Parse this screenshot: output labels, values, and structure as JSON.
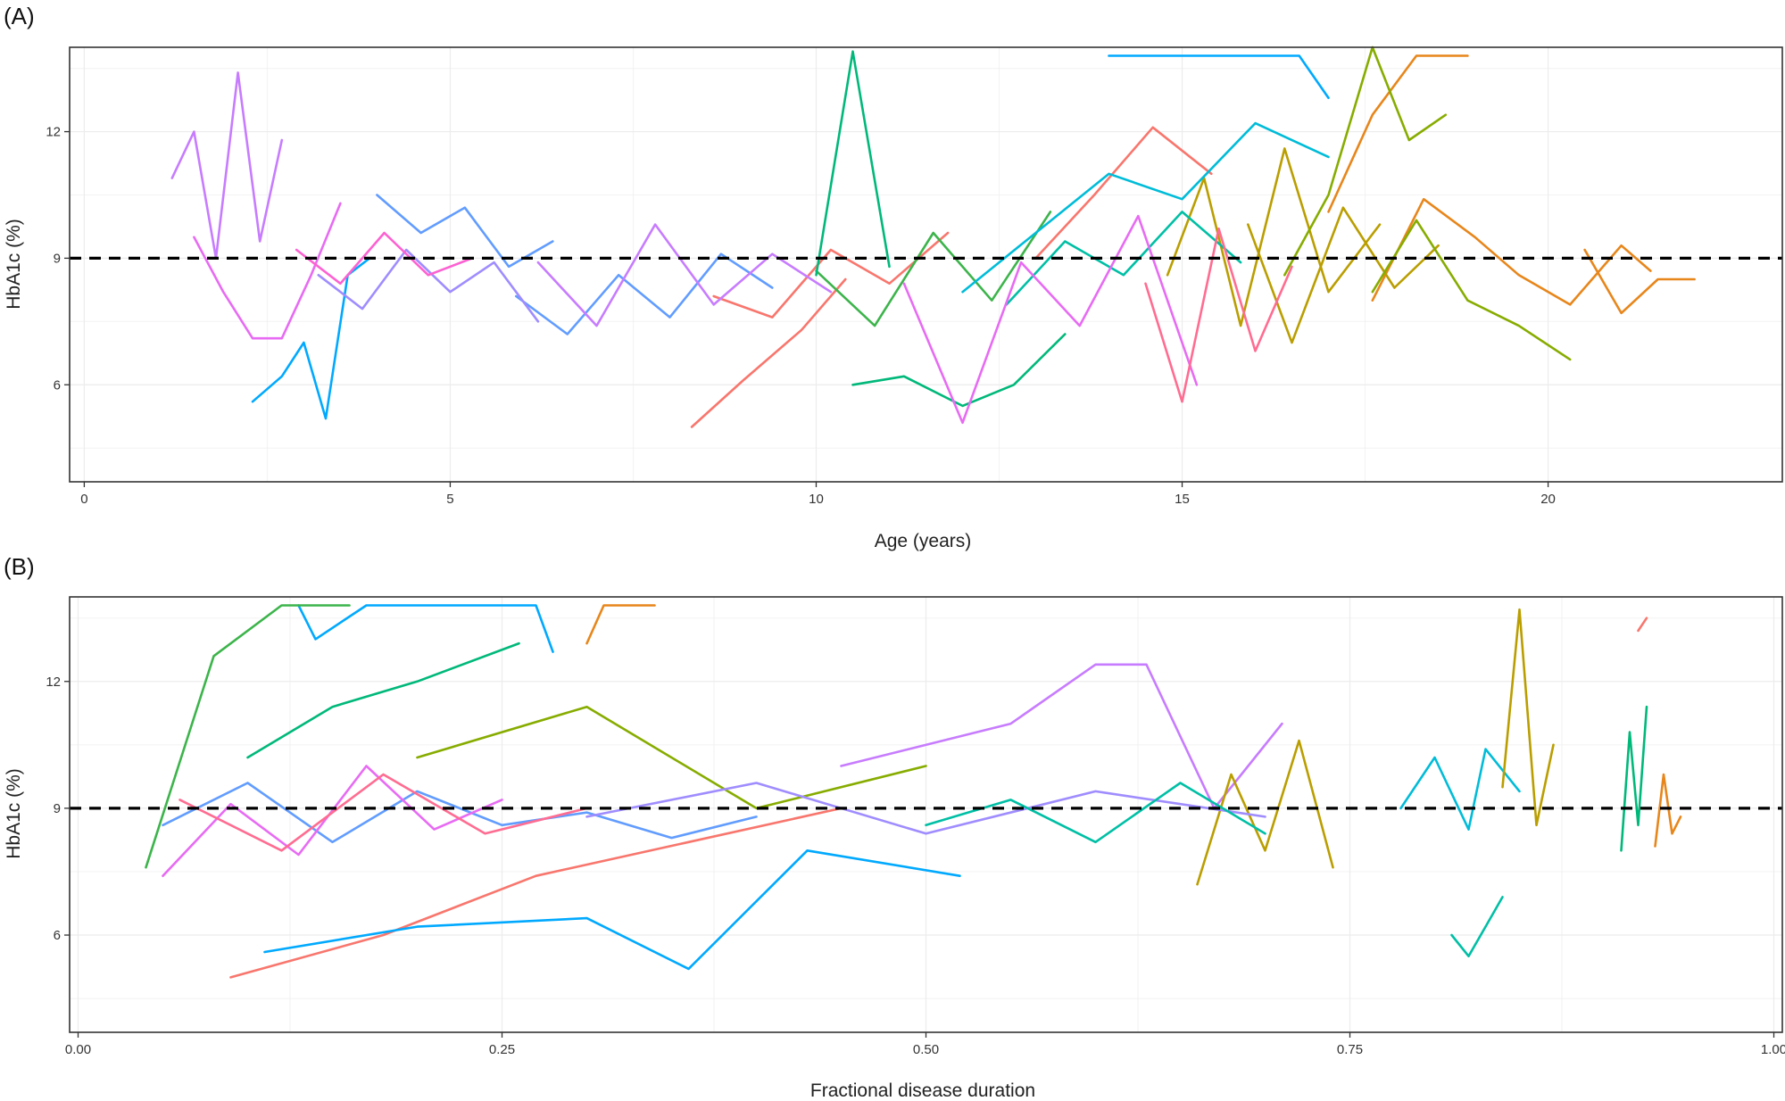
{
  "chart_data": [
    {
      "panel_label": "(A)",
      "type": "line",
      "xlabel": "Age (years)",
      "ylabel": "HbA1c (%)",
      "xlim": [
        -0.2,
        23.2
      ],
      "ylim": [
        3.7,
        14.0
      ],
      "x_ticks": [
        0,
        5,
        10,
        15,
        20
      ],
      "x_tick_labels": [
        "0",
        "5",
        "10",
        "15",
        "20"
      ],
      "y_ticks": [
        6,
        9,
        12
      ],
      "y_tick_labels": [
        "6",
        "9",
        "12"
      ],
      "grid": true,
      "reference_line": {
        "y": 9,
        "style": "dashed",
        "color": "#000000"
      },
      "series": [
        {
          "color": "#f8766d",
          "x": [
            8.3,
            9.0,
            9.8,
            10.4
          ],
          "y": [
            5.0,
            6.1,
            7.3,
            8.5
          ]
        },
        {
          "color": "#f8766d",
          "x": [
            8.6,
            9.4,
            10.2,
            11.0,
            11.8
          ],
          "y": [
            8.1,
            7.6,
            9.2,
            8.4,
            9.6
          ]
        },
        {
          "color": "#f8766d",
          "x": [
            13.0,
            13.8,
            14.6,
            15.4
          ],
          "y": [
            9.0,
            10.5,
            12.1,
            11.0
          ]
        },
        {
          "color": "#e7861b",
          "x": [
            17.6,
            18.3,
            19.0,
            19.6,
            20.3,
            21.0,
            21.4
          ],
          "y": [
            8.0,
            10.4,
            9.5,
            8.6,
            7.9,
            9.3,
            8.7
          ]
        },
        {
          "color": "#e7861b",
          "x": [
            20.5,
            21.0,
            21.5,
            22.0
          ],
          "y": [
            9.2,
            7.7,
            8.5,
            8.5
          ]
        },
        {
          "color": "#e7861b",
          "x": [
            17.0,
            17.6,
            18.2,
            18.9
          ],
          "y": [
            10.1,
            12.4,
            13.8,
            13.8
          ]
        },
        {
          "color": "#ba9e00",
          "x": [
            14.8,
            15.3,
            15.8,
            16.4,
            17.0,
            17.7
          ],
          "y": [
            8.6,
            10.9,
            7.4,
            11.6,
            8.2,
            9.8
          ]
        },
        {
          "color": "#ba9e00",
          "x": [
            15.9,
            16.5,
            17.2,
            17.9,
            18.5
          ],
          "y": [
            9.8,
            7.0,
            10.2,
            8.3,
            9.3
          ]
        },
        {
          "color": "#87ac00",
          "x": [
            16.4,
            17.0,
            17.6,
            18.1,
            18.6
          ],
          "y": [
            8.6,
            10.5,
            14.0,
            11.8,
            12.4
          ]
        },
        {
          "color": "#87ac00",
          "x": [
            17.6,
            18.2,
            18.9,
            19.6,
            20.3
          ],
          "y": [
            8.2,
            9.9,
            8.0,
            7.4,
            6.6
          ]
        },
        {
          "color": "#3cb44b",
          "x": [
            10.0,
            10.8,
            11.6,
            12.4,
            13.2
          ],
          "y": [
            8.7,
            7.4,
            9.6,
            8.0,
            10.1
          ]
        },
        {
          "color": "#00b87a",
          "x": [
            10.5,
            11.2,
            12.0,
            12.7,
            13.4
          ],
          "y": [
            6.0,
            6.2,
            5.5,
            6.0,
            7.2
          ]
        },
        {
          "color": "#00b87a",
          "x": [
            10.0,
            10.5,
            11.0
          ],
          "y": [
            8.6,
            13.9,
            8.8
          ]
        },
        {
          "color": "#00bfa5",
          "x": [
            12.6,
            13.4,
            14.2,
            15.0,
            15.8
          ],
          "y": [
            7.9,
            9.4,
            8.6,
            10.1,
            8.9
          ]
        },
        {
          "color": "#00bcd8",
          "x": [
            12.0,
            13.0,
            14.0,
            15.0,
            16.0,
            17.0
          ],
          "y": [
            8.2,
            9.6,
            11.0,
            10.4,
            12.2,
            11.4
          ]
        },
        {
          "color": "#00a9ff",
          "x": [
            14.0,
            14.3,
            15.0,
            16.6,
            17.0
          ],
          "y": [
            13.8,
            13.8,
            13.8,
            13.8,
            12.8
          ]
        },
        {
          "color": "#00a9ff",
          "x": [
            2.3,
            2.7,
            3.0,
            3.3,
            3.6,
            3.9
          ],
          "y": [
            5.6,
            6.2,
            7.0,
            5.2,
            8.6,
            9.0
          ]
        },
        {
          "color": "#619cff",
          "x": [
            4.0,
            4.6,
            5.2,
            5.8,
            6.4
          ],
          "y": [
            10.5,
            9.6,
            10.2,
            8.8,
            9.4
          ]
        },
        {
          "color": "#619cff",
          "x": [
            5.9,
            6.6,
            7.3,
            8.0,
            8.7,
            9.4
          ],
          "y": [
            8.1,
            7.2,
            8.6,
            7.6,
            9.1,
            8.3
          ]
        },
        {
          "color": "#9f8cff",
          "x": [
            3.2,
            3.8,
            4.4,
            5.0,
            5.6,
            6.2
          ],
          "y": [
            8.6,
            7.8,
            9.2,
            8.2,
            8.9,
            7.5
          ]
        },
        {
          "color": "#c77cff",
          "x": [
            1.2,
            1.5,
            1.8,
            2.1,
            2.4,
            2.7
          ],
          "y": [
            10.9,
            12.0,
            9.0,
            13.4,
            9.4,
            11.8
          ]
        },
        {
          "color": "#c77cff",
          "x": [
            6.2,
            7.0,
            7.8,
            8.6,
            9.4,
            10.2
          ],
          "y": [
            8.9,
            7.4,
            9.8,
            7.9,
            9.1,
            8.2
          ]
        },
        {
          "color": "#e76bf3",
          "x": [
            1.5,
            1.9,
            2.3,
            2.7,
            3.1,
            3.5
          ],
          "y": [
            9.5,
            8.2,
            7.1,
            7.1,
            8.6,
            10.3
          ]
        },
        {
          "color": "#e76bf3",
          "x": [
            11.2,
            12.0,
            12.8,
            13.6,
            14.4,
            15.2
          ],
          "y": [
            8.4,
            5.1,
            8.9,
            7.4,
            10.0,
            6.0
          ]
        },
        {
          "color": "#fd61d1",
          "x": [
            2.9,
            3.5,
            4.1,
            4.7,
            5.3
          ],
          "y": [
            9.2,
            8.4,
            9.6,
            8.6,
            9.0
          ]
        },
        {
          "color": "#ff6c91",
          "x": [
            14.5,
            15.0,
            15.5,
            16.0,
            16.5
          ],
          "y": [
            8.4,
            5.6,
            9.7,
            6.8,
            8.8
          ]
        }
      ]
    },
    {
      "panel_label": "(B)",
      "type": "line",
      "xlabel": "Fractional disease duration",
      "ylabel": "HbA1c (%)",
      "xlim": [
        -0.005,
        1.005
      ],
      "ylim": [
        3.7,
        14.0
      ],
      "x_ticks": [
        0,
        0.25,
        0.5,
        0.75,
        1
      ],
      "x_tick_labels": [
        "0.00",
        "0.25",
        "0.50",
        "0.75",
        "1.00"
      ],
      "y_ticks": [
        6,
        9,
        12
      ],
      "y_tick_labels": [
        "6",
        "9",
        "12"
      ],
      "grid": true,
      "reference_line": {
        "y": 9,
        "style": "dashed",
        "color": "#000000"
      },
      "series": [
        {
          "color": "#00a9ff",
          "x": [
            0.13,
            0.14,
            0.17,
            0.22,
            0.27,
            0.28
          ],
          "y": [
            13.8,
            13.0,
            13.8,
            13.8,
            13.8,
            12.7
          ]
        },
        {
          "color": "#e7861b",
          "x": [
            0.3,
            0.31,
            0.33,
            0.34
          ],
          "y": [
            12.9,
            13.8,
            13.8,
            13.8
          ]
        },
        {
          "color": "#00b87a",
          "x": [
            0.1,
            0.15,
            0.2,
            0.26
          ],
          "y": [
            10.2,
            11.4,
            12.0,
            12.9
          ]
        },
        {
          "color": "#f8766d",
          "x": [
            0.09,
            0.18,
            0.27,
            0.36,
            0.45
          ],
          "y": [
            5.0,
            6.0,
            7.4,
            8.2,
            9.0
          ]
        },
        {
          "color": "#00a9ff",
          "x": [
            0.11,
            0.2,
            0.3,
            0.36,
            0.43,
            0.52
          ],
          "y": [
            5.6,
            6.2,
            6.4,
            5.2,
            8.0,
            7.4
          ]
        },
        {
          "color": "#c77cff",
          "x": [
            0.45,
            0.55,
            0.6,
            0.63,
            0.67,
            0.71
          ],
          "y": [
            10.0,
            11.0,
            12.4,
            12.4,
            9.0,
            11.0
          ]
        },
        {
          "color": "#ba9e00",
          "x": [
            0.66,
            0.68,
            0.7,
            0.72,
            0.74
          ],
          "y": [
            7.2,
            9.8,
            8.0,
            10.6,
            7.6
          ]
        },
        {
          "color": "#00bcd8",
          "x": [
            0.78,
            0.8,
            0.82,
            0.83,
            0.85
          ],
          "y": [
            9.0,
            10.2,
            8.5,
            10.4,
            9.4
          ]
        },
        {
          "color": "#ba9e00",
          "x": [
            0.84,
            0.85,
            0.86,
            0.87
          ],
          "y": [
            9.5,
            13.7,
            8.6,
            10.5
          ]
        },
        {
          "color": "#00b87a",
          "x": [
            0.91,
            0.915,
            0.92,
            0.925
          ],
          "y": [
            8.0,
            10.8,
            8.6,
            11.4
          ]
        },
        {
          "color": "#e7861b",
          "x": [
            0.93,
            0.935,
            0.94,
            0.945
          ],
          "y": [
            8.1,
            9.8,
            8.4,
            8.8
          ]
        },
        {
          "color": "#f8766d",
          "x": [
            0.92,
            0.925
          ],
          "y": [
            13.2,
            13.5
          ]
        },
        {
          "color": "#00bfa5",
          "x": [
            0.81,
            0.82,
            0.83,
            0.84
          ],
          "y": [
            6.0,
            5.5,
            6.2,
            6.9
          ]
        },
        {
          "color": "#619cff",
          "x": [
            0.05,
            0.1,
            0.15,
            0.2,
            0.25,
            0.3,
            0.35,
            0.4
          ],
          "y": [
            8.6,
            9.6,
            8.2,
            9.4,
            8.6,
            8.9,
            8.3,
            8.8
          ]
        },
        {
          "color": "#e76bf3",
          "x": [
            0.05,
            0.09,
            0.13,
            0.17,
            0.21,
            0.25
          ],
          "y": [
            7.4,
            9.1,
            7.9,
            10.0,
            8.5,
            9.2
          ]
        },
        {
          "color": "#ff6c91",
          "x": [
            0.06,
            0.12,
            0.18,
            0.24,
            0.3
          ],
          "y": [
            9.2,
            8.0,
            9.8,
            8.4,
            9.0
          ]
        },
        {
          "color": "#3cb44b",
          "x": [
            0.04,
            0.08,
            0.12,
            0.16
          ],
          "y": [
            7.6,
            12.6,
            13.8,
            13.8
          ]
        },
        {
          "color": "#87ac00",
          "x": [
            0.2,
            0.3,
            0.4,
            0.5
          ],
          "y": [
            10.2,
            11.4,
            9.0,
            10.0
          ]
        },
        {
          "color": "#9f8cff",
          "x": [
            0.3,
            0.4,
            0.5,
            0.6,
            0.7
          ],
          "y": [
            8.8,
            9.6,
            8.4,
            9.4,
            8.8
          ]
        },
        {
          "color": "#00bfa5",
          "x": [
            0.5,
            0.55,
            0.6,
            0.65,
            0.7
          ],
          "y": [
            8.6,
            9.2,
            8.2,
            9.6,
            8.4
          ]
        }
      ]
    }
  ]
}
